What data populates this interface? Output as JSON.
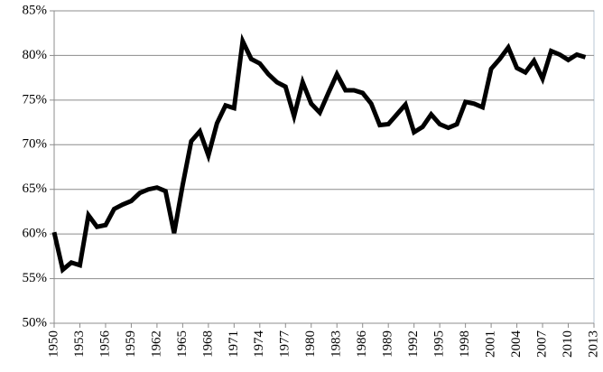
{
  "chart_data": {
    "type": "line",
    "x": [
      1950,
      1951,
      1952,
      1953,
      1954,
      1955,
      1956,
      1957,
      1958,
      1959,
      1960,
      1961,
      1962,
      1963,
      1964,
      1965,
      1966,
      1967,
      1968,
      1969,
      1970,
      1971,
      1972,
      1973,
      1974,
      1975,
      1976,
      1977,
      1978,
      1979,
      1980,
      1981,
      1982,
      1983,
      1984,
      1985,
      1986,
      1987,
      1988,
      1989,
      1990,
      1991,
      1992,
      1993,
      1994,
      1995,
      1996,
      1997,
      1998,
      1999,
      2000,
      2001,
      2002,
      2003,
      2004,
      2005,
      2006,
      2007,
      2008,
      2009,
      2010,
      2011,
      2012
    ],
    "values": [
      60.2,
      56.0,
      56.8,
      56.5,
      62.1,
      60.8,
      61.0,
      62.8,
      63.3,
      63.7,
      64.6,
      65.0,
      65.2,
      64.8,
      60.1,
      65.5,
      70.4,
      71.5,
      68.8,
      72.4,
      74.4,
      74.1,
      81.6,
      79.6,
      79.1,
      77.9,
      77.0,
      76.5,
      73.2,
      77.0,
      74.6,
      73.6,
      75.8,
      77.9,
      76.1,
      76.1,
      75.8,
      74.6,
      72.2,
      72.3,
      73.4,
      74.5,
      71.4,
      72.0,
      73.4,
      72.3,
      71.9,
      72.3,
      74.8,
      74.6,
      74.2,
      78.5,
      79.6,
      80.9,
      78.6,
      78.1,
      79.4,
      77.4,
      80.5,
      80.1,
      79.5,
      80.1,
      79.8
    ],
    "color": "#000000",
    "xlim": [
      1950,
      2013
    ],
    "xticks": [
      1950,
      1953,
      1956,
      1959,
      1962,
      1965,
      1968,
      1971,
      1974,
      1977,
      1980,
      1983,
      1986,
      1989,
      1992,
      1995,
      1998,
      2001,
      2004,
      2007,
      2010,
      2013
    ],
    "ylim": [
      50,
      85
    ],
    "yticks": [
      {
        "value": 50,
        "label": "50%"
      },
      {
        "value": 55,
        "label": "55%"
      },
      {
        "value": 60,
        "label": "60%"
      },
      {
        "value": 65,
        "label": "65%"
      },
      {
        "value": 70,
        "label": "70%"
      },
      {
        "value": 75,
        "label": "75%"
      },
      {
        "value": 80,
        "label": "80%"
      },
      {
        "value": 85,
        "label": "85%"
      }
    ],
    "grid": true
  }
}
